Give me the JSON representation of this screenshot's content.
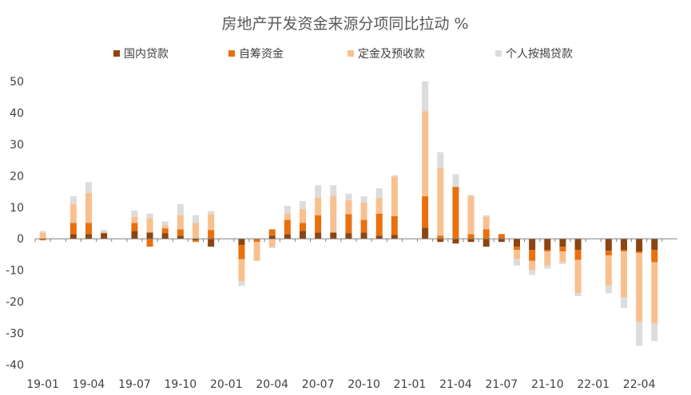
{
  "chart_data": {
    "type": "bar",
    "stacked": true,
    "title": "房地产开发资金来源分项同比拉动 %",
    "xlabel": "",
    "ylabel": "",
    "ylim": [
      -40,
      50
    ],
    "yticks": [
      50,
      40,
      30,
      20,
      10,
      0,
      -10,
      -20,
      -30,
      -40
    ],
    "grid": false,
    "legend_position": "top",
    "x_tick_labels": [
      "19-01",
      "19-04",
      "19-07",
      "19-10",
      "20-01",
      "20-04",
      "20-07",
      "20-10",
      "21-01",
      "21-04",
      "21-07",
      "21-10",
      "22-01",
      "22-04"
    ],
    "categories": [
      "19-01",
      "19-02",
      "19-03",
      "19-04",
      "19-05",
      "19-06",
      "19-07",
      "19-08",
      "19-09",
      "19-10",
      "19-11",
      "19-12",
      "20-01",
      "20-02",
      "20-03",
      "20-04",
      "20-05",
      "20-06",
      "20-07",
      "20-08",
      "20-09",
      "20-10",
      "20-11",
      "20-12",
      "21-01",
      "21-02",
      "21-03",
      "21-04",
      "21-05",
      "21-06",
      "21-07",
      "21-08",
      "21-09",
      "21-10",
      "21-11",
      "21-12",
      "22-01",
      "22-02",
      "22-03",
      "22-04",
      "22-05",
      "22-06"
    ],
    "series": [
      {
        "name": "国内贷款",
        "color": "#8B4513",
        "values": [
          0,
          null,
          1.5,
          1.5,
          1.8,
          null,
          2.5,
          2,
          1.8,
          1,
          -0.5,
          -2.5,
          null,
          -2,
          0,
          1,
          1.5,
          2.5,
          2,
          2,
          1.8,
          2,
          1,
          1.2,
          null,
          3.5,
          -1,
          -1.5,
          -1,
          -2.5,
          -1,
          -2.5,
          -3.5,
          -3.5,
          -2.5,
          -3.5,
          null,
          -3.8,
          -3.5,
          -4,
          -3.5,
          null
        ]
      },
      {
        "name": "自筹资金",
        "color": "#E8700E",
        "values": [
          -0.5,
          null,
          3.5,
          3.5,
          0,
          null,
          2.5,
          -2.5,
          1.5,
          2,
          -0.5,
          2.8,
          null,
          -4.5,
          -1,
          2,
          4.5,
          2.5,
          5.5,
          0,
          6,
          4,
          7,
          6,
          null,
          10,
          1,
          16.5,
          1.5,
          3,
          1.5,
          -1,
          -3.5,
          -0.5,
          -1.5,
          -3.2,
          null,
          -1.5,
          -0.5,
          -0.5,
          -4,
          null
        ]
      },
      {
        "name": "定金及预收款",
        "color": "#F9C08F",
        "values": [
          2,
          null,
          6,
          9.5,
          0.5,
          null,
          2,
          4.5,
          1,
          4.5,
          5,
          5,
          null,
          -7,
          -6,
          -2.5,
          2,
          4.5,
          5.5,
          11.5,
          4.5,
          5.5,
          5,
          12.5,
          null,
          27,
          21.5,
          0,
          12,
          4,
          0,
          -3,
          -3,
          -4.5,
          -3.5,
          -10.5,
          null,
          -9.5,
          -14.5,
          -22,
          -19.5,
          null
        ]
      },
      {
        "name": "个人按揭贷款",
        "color": "#DCDCDC",
        "values": [
          0.5,
          null,
          2.5,
          3.5,
          0.5,
          null,
          2,
          1.5,
          1.2,
          3.5,
          2.5,
          1,
          null,
          -1.5,
          0,
          -0.5,
          2.5,
          2.5,
          4,
          3.5,
          2,
          2,
          3,
          0.5,
          null,
          9.5,
          5,
          4,
          0.5,
          0.5,
          0,
          -2,
          -1.5,
          -1,
          -0.5,
          -1,
          null,
          -2.5,
          -3.5,
          -7.5,
          -5.5,
          null
        ]
      }
    ]
  },
  "legend": {
    "items": [
      {
        "label": "国内贷款",
        "color": "#8B4513"
      },
      {
        "label": "自筹资金",
        "color": "#E8700E"
      },
      {
        "label": "定金及预收款",
        "color": "#F9C08F"
      },
      {
        "label": "个人按揭贷款",
        "color": "#DCDCDC"
      }
    ]
  },
  "colors": {
    "axis": "#808080",
    "text": "#404040",
    "title": "#595959"
  }
}
